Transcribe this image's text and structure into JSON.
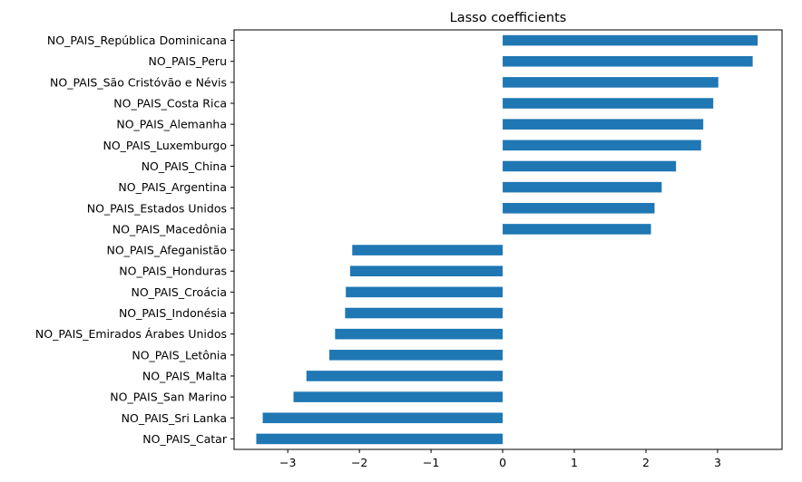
{
  "chart_data": {
    "type": "bar",
    "orientation": "horizontal",
    "title": "Lasso coefficients",
    "xlabel": "",
    "ylabel": "",
    "xlim": [
      -3.75,
      3.9
    ],
    "xticks": [
      -3,
      -2,
      -1,
      0,
      1,
      2,
      3
    ],
    "xtick_labels": [
      "−3",
      "−2",
      "−1",
      "0",
      "1",
      "2",
      "3"
    ],
    "grid": false,
    "bar_color": "#1f77b4",
    "categories": [
      "NO_PAIS_República Dominicana",
      "NO_PAIS_Peru",
      "NO_PAIS_São Cristóvão e Névis",
      "NO_PAIS_Costa Rica",
      "NO_PAIS_Alemanha",
      "NO_PAIS_Luxemburgo",
      "NO_PAIS_China",
      "NO_PAIS_Argentina",
      "NO_PAIS_Estados Unidos",
      "NO_PAIS_Macedônia",
      "NO_PAIS_Afeganistão",
      "NO_PAIS_Honduras",
      "NO_PAIS_Croácia",
      "NO_PAIS_Indonésia",
      "NO_PAIS_Emirados Árabes Unidos",
      "NO_PAIS_Letônia",
      "NO_PAIS_Malta",
      "NO_PAIS_San Marino",
      "NO_PAIS_Sri Lanka",
      "NO_PAIS_Catar"
    ],
    "values": [
      3.56,
      3.49,
      3.01,
      2.94,
      2.8,
      2.77,
      2.42,
      2.22,
      2.12,
      2.07,
      -2.1,
      -2.13,
      -2.19,
      -2.2,
      -2.34,
      -2.42,
      -2.74,
      -2.92,
      -3.35,
      -3.44
    ]
  }
}
